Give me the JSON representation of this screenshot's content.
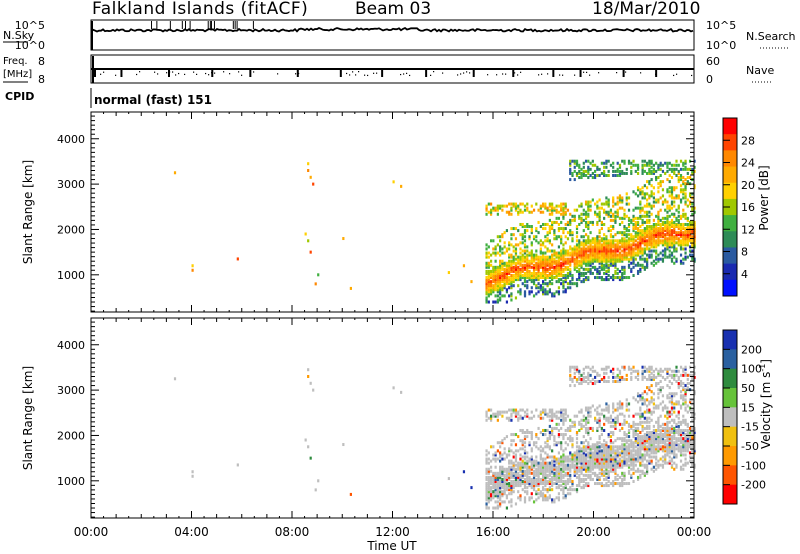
{
  "header": {
    "title": "Falkland Islands (fitACF)",
    "beam": "Beam 03",
    "date": "18/Mar/2010"
  },
  "status_panels": {
    "nsky_label": "N.Sky",
    "nsky_ticks": [
      "10^5",
      "10^0"
    ],
    "nsearch_label": "N.Search",
    "nsearch_ticks": [
      "10^5",
      "10^0"
    ],
    "freq_label": "Freq.",
    "freq_unit": "[MHz]",
    "freq_ticks": [
      "8",
      "8"
    ],
    "nave_label": "Nave",
    "nave_ticks": [
      "60",
      "0"
    ],
    "cpid_label": "CPID",
    "cpid_value": "normal (fast) 151"
  },
  "chart_data": [
    {
      "type": "heatmap",
      "name": "power",
      "ylabel": "Slant Range [km]",
      "ylim": [
        180,
        4590
      ],
      "yticks": [
        "1000",
        "2000",
        "3000",
        "4000"
      ],
      "colorbar_label": "Power [dB]",
      "colorbar_ticks": [
        "28",
        "24",
        "20",
        "16",
        "12",
        "8",
        "4"
      ],
      "colorbar_colors": [
        "#ff0000",
        "#ff4400",
        "#ff8800",
        "#ffaa00",
        "#ffd000",
        "#a0c800",
        "#40b040",
        "#2e8b57",
        "#2a5aa0",
        "#1a2ab0",
        "#0010ff"
      ],
      "x_range_hours": [
        0,
        24
      ]
    },
    {
      "type": "heatmap",
      "name": "velocity",
      "ylabel": "Slant Range [km]",
      "ylim": [
        180,
        4590
      ],
      "yticks": [
        "1000",
        "2000",
        "3000",
        "4000"
      ],
      "colorbar_label": "Velocity [m s",
      "colorbar_label_sup": "-1",
      "colorbar_label_end": "]",
      "colorbar_ticks": [
        "200",
        "100",
        "50",
        "15",
        "-15",
        "-50",
        "-100",
        "-200"
      ],
      "colorbar_colors": [
        "#1830b0",
        "#2a60a0",
        "#2e8b3e",
        "#66c33a",
        "#bebebe",
        "#f0c010",
        "#ff9a00",
        "#ff5500",
        "#ff0000"
      ],
      "x_range_hours": [
        0,
        24
      ]
    }
  ],
  "x_axis": {
    "label": "Time UT",
    "ticks": [
      "00:00",
      "04:00",
      "08:00",
      "12:00",
      "16:00",
      "20:00",
      "00:00"
    ]
  }
}
